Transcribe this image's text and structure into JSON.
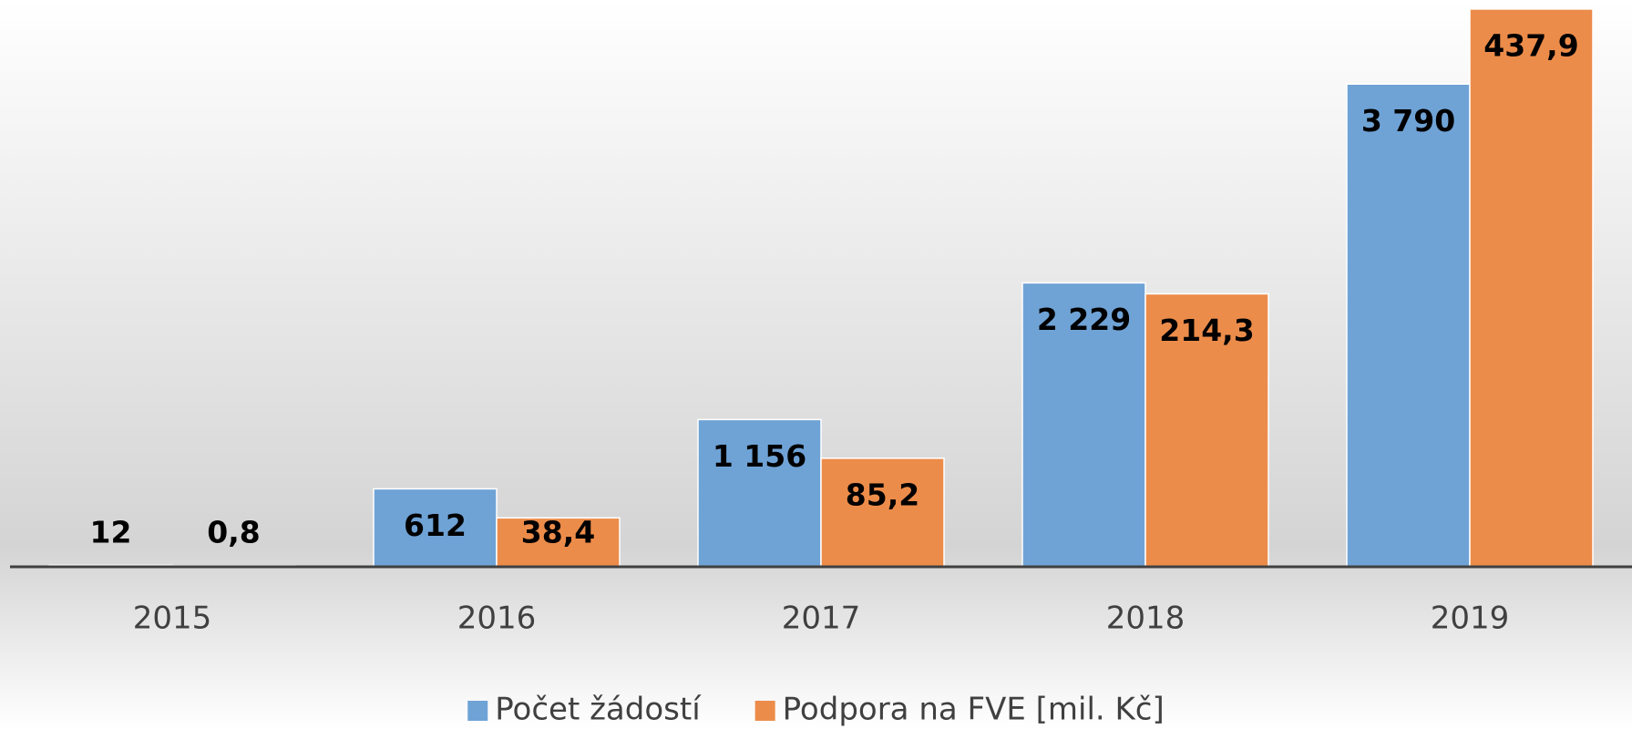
{
  "chart_data": {
    "type": "bar",
    "categories": [
      "2015",
      "2016",
      "2017",
      "2018",
      "2019"
    ],
    "series": [
      {
        "name": "Počet žádostí",
        "color": "#6fa3d6",
        "values": [
          12,
          612,
          1156,
          2229,
          3790
        ],
        "value_labels": [
          "12",
          "612",
          "1 156",
          "2 229",
          "3 790"
        ]
      },
      {
        "name": "Podpora na FVE [mil. Kč]",
        "color": "#ec8c4a",
        "axis": "y2",
        "values": [
          0.8,
          38.4,
          85.2,
          214.3,
          437.9
        ],
        "value_labels": [
          "0,8",
          "38,4",
          "85,2",
          "214,3",
          "437,9"
        ]
      }
    ],
    "ylim": [
      0,
      4450
    ],
    "y2lim": [
      0,
      445
    ],
    "legend": "bottom"
  }
}
